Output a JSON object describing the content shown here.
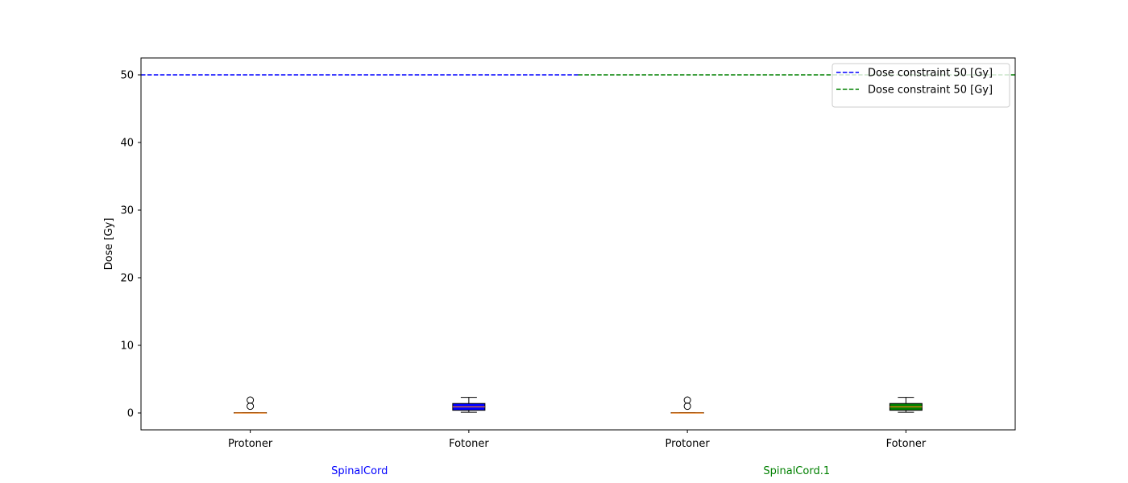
{
  "chart_data": {
    "type": "box",
    "title": "",
    "ylabel": "Dose [Gy]",
    "ylim": [
      -2.5,
      52.5
    ],
    "yticks": [
      0,
      10,
      20,
      30,
      40,
      50
    ],
    "grid": false,
    "legend_position": "top-right",
    "boxes": [
      {
        "label": "Protoner",
        "group": "SpinalCord",
        "q1": 0.0,
        "median": 0.0,
        "q3": 0.05,
        "whisker_low": 0.0,
        "whisker_high": 0.05,
        "outliers": [
          1.0,
          1.9
        ],
        "fill": "#ffffff"
      },
      {
        "label": "Fotoner",
        "group": "SpinalCord",
        "q1": 0.4,
        "median": 0.9,
        "q3": 1.4,
        "whisker_low": 0.1,
        "whisker_high": 2.3,
        "outliers": [],
        "fill": "#0000ff"
      },
      {
        "label": "Protoner",
        "group": "SpinalCord.1",
        "q1": 0.0,
        "median": 0.0,
        "q3": 0.05,
        "whisker_low": 0.0,
        "whisker_high": 0.05,
        "outliers": [
          1.0,
          1.9
        ],
        "fill": "#ffffff"
      },
      {
        "label": "Fotoner",
        "group": "SpinalCord.1",
        "q1": 0.4,
        "median": 0.9,
        "q3": 1.4,
        "whisker_low": 0.1,
        "whisker_high": 2.3,
        "outliers": [],
        "fill": "#008000"
      }
    ],
    "groups": [
      {
        "name": "SpinalCord",
        "color": "#0000ff"
      },
      {
        "name": "SpinalCord.1",
        "color": "#008000"
      }
    ],
    "reference_lines": [
      {
        "label": "Dose constraint  50 [Gy]",
        "y": 50,
        "color": "#0000ff",
        "style": "dashed",
        "group": "SpinalCord"
      },
      {
        "label": "Dose constraint  50 [Gy]",
        "y": 50,
        "color": "#008000",
        "style": "dashed",
        "group": "SpinalCord.1"
      }
    ],
    "median_color": "#ff7f0e"
  }
}
